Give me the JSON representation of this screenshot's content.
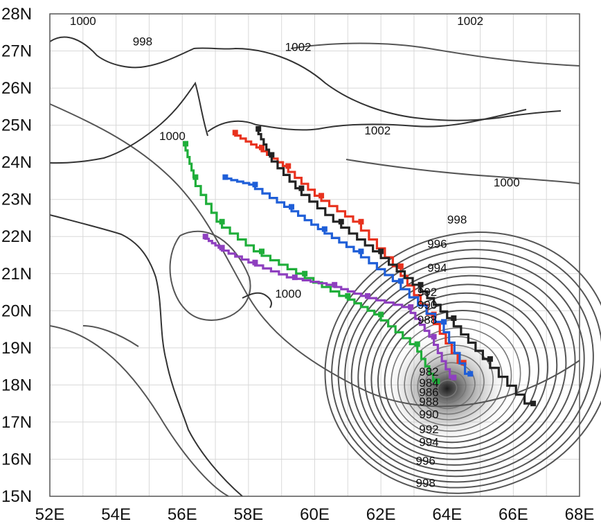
{
  "map": {
    "x_ticks": [
      "52E",
      "54E",
      "56E",
      "58E",
      "60E",
      "62E",
      "64E",
      "66E",
      "68E"
    ],
    "y_ticks": [
      "28N",
      "27N",
      "26N",
      "25N",
      "24N",
      "23N",
      "22N",
      "21N",
      "20N",
      "19N",
      "18N",
      "17N",
      "16N",
      "15N"
    ],
    "lon_range": [
      52,
      68
    ],
    "lat_range": [
      15,
      28
    ],
    "grid": true
  },
  "isobar_labels": [
    {
      "text": "1000",
      "lon": 53.0,
      "lat": 27.7
    },
    {
      "text": "998",
      "lon": 54.8,
      "lat": 27.15
    },
    {
      "text": "1002",
      "lon": 59.5,
      "lat": 27.0
    },
    {
      "text": "1002",
      "lon": 64.7,
      "lat": 27.7
    },
    {
      "text": "1002",
      "lon": 61.9,
      "lat": 24.75
    },
    {
      "text": "1000",
      "lon": 55.7,
      "lat": 24.6
    },
    {
      "text": "1000",
      "lon": 65.8,
      "lat": 23.35
    },
    {
      "text": "998",
      "lon": 64.3,
      "lat": 22.35
    },
    {
      "text": "996",
      "lon": 63.7,
      "lat": 21.7
    },
    {
      "text": "994",
      "lon": 63.7,
      "lat": 21.05
    },
    {
      "text": "992",
      "lon": 63.4,
      "lat": 20.4
    },
    {
      "text": "990",
      "lon": 63.4,
      "lat": 20.05
    },
    {
      "text": "988",
      "lon": 63.4,
      "lat": 19.65
    },
    {
      "text": "1000",
      "lon": 59.2,
      "lat": 20.35
    },
    {
      "text": "982",
      "lon": 63.45,
      "lat": 18.25
    },
    {
      "text": "984",
      "lon": 63.45,
      "lat": 17.95
    },
    {
      "text": "986",
      "lon": 63.45,
      "lat": 17.7
    },
    {
      "text": "988",
      "lon": 63.45,
      "lat": 17.45
    },
    {
      "text": "990",
      "lon": 63.45,
      "lat": 17.1
    },
    {
      "text": "992",
      "lon": 63.45,
      "lat": 16.7
    },
    {
      "text": "994",
      "lon": 63.45,
      "lat": 16.35
    },
    {
      "text": "996",
      "lon": 63.35,
      "lat": 15.85
    },
    {
      "text": "998",
      "lon": 63.35,
      "lat": 15.25
    }
  ],
  "cyclone_center": {
    "lon": 64.0,
    "lat": 17.9
  },
  "tracks": [
    {
      "color": "#e8321e",
      "points": [
        [
          64.5,
          18.6
        ],
        [
          63.6,
          19.9
        ],
        [
          62.6,
          21.2
        ],
        [
          61.4,
          22.4
        ],
        [
          60.2,
          23.1
        ],
        [
          59.2,
          23.9
        ],
        [
          58.4,
          24.4
        ],
        [
          57.6,
          24.8
        ]
      ]
    },
    {
      "color": "#1e5ed8",
      "points": [
        [
          64.7,
          18.3
        ],
        [
          63.9,
          19.7
        ],
        [
          62.6,
          20.8
        ],
        [
          61.4,
          21.6
        ],
        [
          60.3,
          22.2
        ],
        [
          59.3,
          22.8
        ],
        [
          58.2,
          23.4
        ],
        [
          57.3,
          23.6
        ]
      ]
    },
    {
      "color": "#1fae3a",
      "points": [
        [
          63.7,
          18.1
        ],
        [
          63.1,
          19.1
        ],
        [
          62.0,
          19.9
        ],
        [
          61.0,
          20.4
        ],
        [
          59.7,
          21.0
        ],
        [
          58.4,
          21.6
        ],
        [
          57.2,
          22.4
        ],
        [
          56.4,
          23.6
        ],
        [
          56.1,
          24.5
        ]
      ]
    },
    {
      "color": "#8e3fbf",
      "points": [
        [
          64.2,
          18.2
        ],
        [
          63.6,
          19.3
        ],
        [
          62.9,
          20.1
        ],
        [
          61.6,
          20.4
        ],
        [
          60.6,
          20.7
        ],
        [
          59.4,
          20.9
        ],
        [
          58.2,
          21.3
        ],
        [
          57.2,
          21.7
        ],
        [
          56.7,
          22.0
        ]
      ]
    },
    {
      "color": "#222222",
      "points": [
        [
          66.6,
          17.5
        ],
        [
          65.3,
          18.7
        ],
        [
          64.2,
          19.8
        ],
        [
          63.2,
          20.7
        ],
        [
          62.0,
          21.6
        ],
        [
          60.8,
          22.4
        ],
        [
          59.6,
          23.3
        ],
        [
          58.7,
          24.2
        ],
        [
          58.3,
          24.9
        ]
      ]
    }
  ]
}
